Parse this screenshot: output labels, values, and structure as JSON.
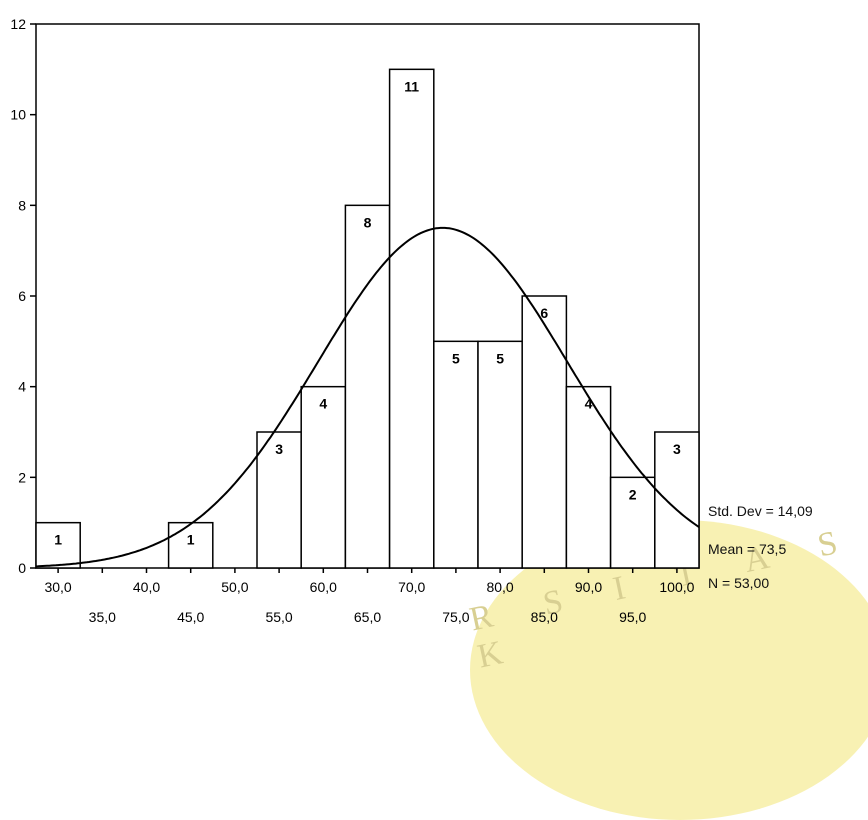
{
  "watermark_text": "R S I T A S  K",
  "stats": {
    "std_dev": "Std. Dev = 14,09",
    "mean": "Mean = 73,5",
    "n": "N = 53,00"
  },
  "chart_data": {
    "type": "bar",
    "title": "",
    "xlabel": "",
    "ylabel": "",
    "ylim": [
      0,
      12
    ],
    "xlim": [
      27.5,
      102.5
    ],
    "bin_width": 5,
    "y_ticks": [
      "0",
      "2",
      "4",
      "6",
      "8",
      "10",
      "12"
    ],
    "x_tick_labels_row1": [
      "30,0",
      "40,0",
      "50,0",
      "60,0",
      "70,0",
      "80,0",
      "90,0",
      "100,0"
    ],
    "x_tick_labels_row2": [
      "35,0",
      "45,0",
      "55,0",
      "65,0",
      "75,0",
      "85,0",
      "95,0"
    ],
    "bins": [
      {
        "center": 30,
        "count": 1,
        "label": "1"
      },
      {
        "center": 45,
        "count": 1,
        "label": "1"
      },
      {
        "center": 55,
        "count": 3,
        "label": "3"
      },
      {
        "center": 60,
        "count": 4,
        "label": "4"
      },
      {
        "center": 65,
        "count": 8,
        "label": "8"
      },
      {
        "center": 70,
        "count": 11,
        "label": "11"
      },
      {
        "center": 75,
        "count": 5,
        "label": "5"
      },
      {
        "center": 80,
        "count": 5,
        "label": "5"
      },
      {
        "center": 85,
        "count": 6,
        "label": "6"
      },
      {
        "center": 90,
        "count": 4,
        "label": "4"
      },
      {
        "center": 95,
        "count": 2,
        "label": "2"
      },
      {
        "center": 100,
        "count": 3,
        "label": "3"
      }
    ],
    "normal_curve": {
      "mean": 73.5,
      "std_dev": 14.09,
      "n": 53
    },
    "grid": false,
    "legend": "right"
  }
}
